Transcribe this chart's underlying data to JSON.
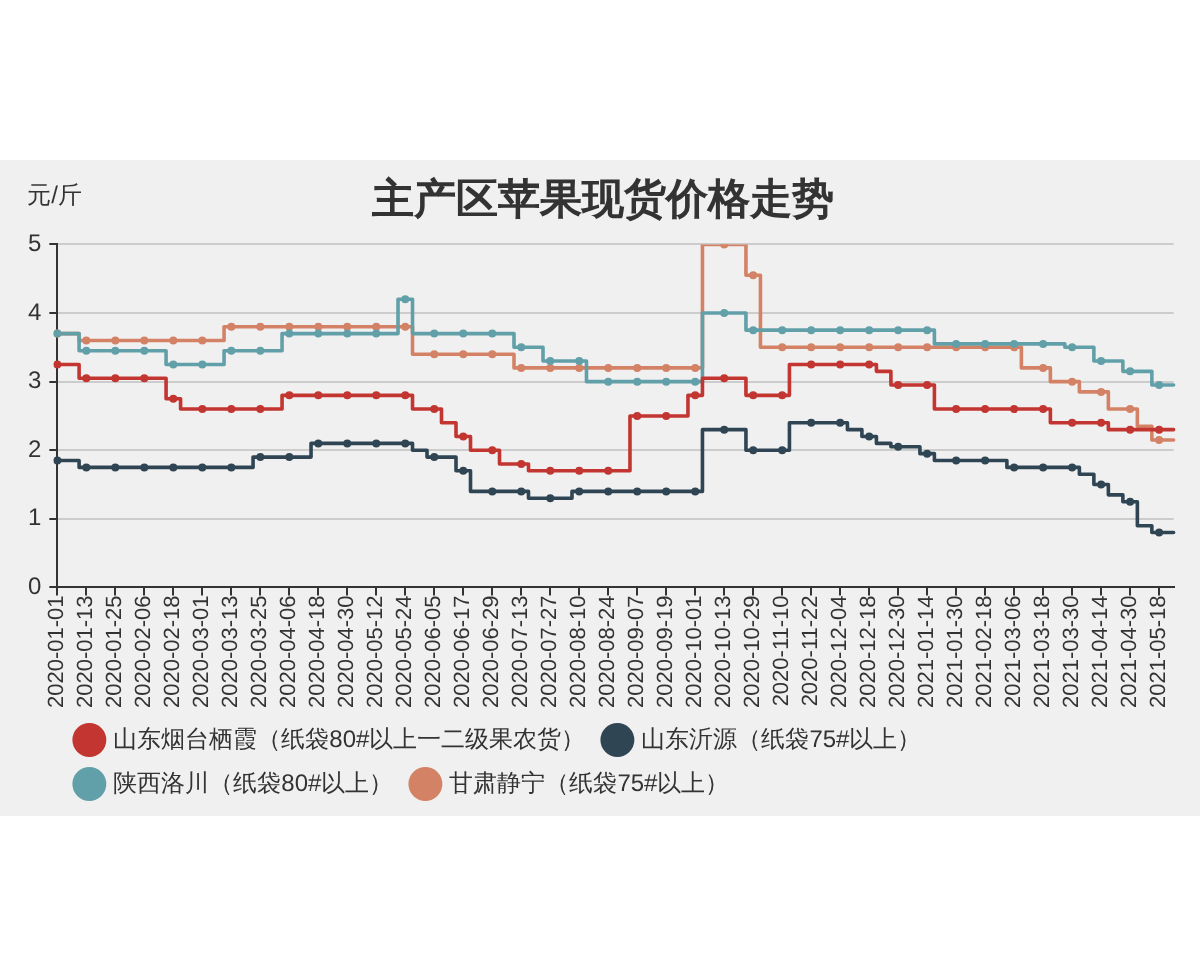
{
  "chart_data": {
    "type": "step",
    "title": "主产区苹果现货价格走势",
    "ylabel": "元/斤",
    "categories": [
      "2020-01-01",
      null,
      "2020-01-13",
      null,
      "2020-01-25",
      null,
      "2020-02-06",
      null,
      "2020-02-18",
      null,
      "2020-03-01",
      null,
      "2020-03-13",
      null,
      "2020-03-25",
      null,
      "2020-04-06",
      null,
      "2020-04-18",
      null,
      "2020-04-30",
      null,
      "2020-05-12",
      null,
      "2020-05-24",
      null,
      "2020-06-05",
      null,
      "2020-06-17",
      null,
      "2020-06-29",
      null,
      "2020-07-13",
      null,
      "2020-07-27",
      null,
      "2020-08-10",
      null,
      "2020-08-24",
      null,
      "2020-09-07",
      null,
      "2020-09-19",
      null,
      "2020-10-01",
      null,
      "2020-10-13",
      null,
      "2020-10-29",
      null,
      "2020-11-10",
      null,
      "2020-11-22",
      null,
      "2020-12-04",
      null,
      "2020-12-18",
      null,
      "2020-12-30",
      null,
      "2021-01-14",
      null,
      "2021-01-30",
      null,
      "2021-02-18",
      null,
      "2021-03-06",
      null,
      "2021-03-18",
      null,
      "2021-03-30",
      null,
      "2021-04-14",
      null,
      "2021-04-30",
      null,
      "2021-05-18",
      null
    ],
    "series": [
      {
        "name": "山东烟台栖霞（纸袋80#以上一二级果农货）",
        "color": "#c23531",
        "values": [
          3.25,
          3.25,
          3.05,
          3.05,
          3.05,
          3.05,
          3.05,
          3.05,
          2.75,
          2.6,
          2.6,
          2.6,
          2.6,
          2.6,
          2.6,
          2.6,
          2.8,
          2.8,
          2.8,
          2.8,
          2.8,
          2.8,
          2.8,
          2.8,
          2.8,
          2.6,
          2.6,
          2.4,
          2.2,
          2.0,
          2.0,
          1.8,
          1.8,
          1.7,
          1.7,
          1.7,
          1.7,
          1.7,
          1.7,
          1.7,
          2.5,
          2.5,
          2.5,
          2.5,
          2.8,
          3.05,
          3.05,
          3.05,
          2.8,
          2.8,
          2.8,
          3.25,
          3.25,
          3.25,
          3.25,
          3.25,
          3.25,
          3.15,
          2.95,
          2.95,
          2.95,
          2.6,
          2.6,
          2.6,
          2.6,
          2.6,
          2.6,
          2.6,
          2.6,
          2.4,
          2.4,
          2.4,
          2.4,
          2.3,
          2.3,
          2.3,
          2.3,
          2.3
        ]
      },
      {
        "name": "山东沂源（纸袋75#以上）",
        "color": "#2f4554",
        "values": [
          1.85,
          1.85,
          1.75,
          1.75,
          1.75,
          1.75,
          1.75,
          1.75,
          1.75,
          1.75,
          1.75,
          1.75,
          1.75,
          1.75,
          1.9,
          1.9,
          1.9,
          1.9,
          2.1,
          2.1,
          2.1,
          2.1,
          2.1,
          2.1,
          2.1,
          2.0,
          1.9,
          1.9,
          1.7,
          1.4,
          1.4,
          1.4,
          1.4,
          1.3,
          1.3,
          1.3,
          1.4,
          1.4,
          1.4,
          1.4,
          1.4,
          1.4,
          1.4,
          1.4,
          1.4,
          2.3,
          2.3,
          2.3,
          2.0,
          2.0,
          2.0,
          2.4,
          2.4,
          2.4,
          2.4,
          2.3,
          2.2,
          2.1,
          2.05,
          2.05,
          1.95,
          1.85,
          1.85,
          1.85,
          1.85,
          1.85,
          1.75,
          1.75,
          1.75,
          1.75,
          1.75,
          1.65,
          1.5,
          1.35,
          1.25,
          0.9,
          0.8,
          0.8
        ]
      },
      {
        "name": "陕西洛川（纸袋80#以上）",
        "color": "#61a0a8",
        "values": [
          3.7,
          3.7,
          3.45,
          3.45,
          3.45,
          3.45,
          3.45,
          3.45,
          3.25,
          3.25,
          3.25,
          3.25,
          3.45,
          3.45,
          3.45,
          3.45,
          3.7,
          3.7,
          3.7,
          3.7,
          3.7,
          3.7,
          3.7,
          3.7,
          4.2,
          3.7,
          3.7,
          3.7,
          3.7,
          3.7,
          3.7,
          3.7,
          3.5,
          3.5,
          3.3,
          3.3,
          3.3,
          3.0,
          3.0,
          3.0,
          3.0,
          3.0,
          3.0,
          3.0,
          3.0,
          4.0,
          4.0,
          4.0,
          3.75,
          3.75,
          3.75,
          3.75,
          3.75,
          3.75,
          3.75,
          3.75,
          3.75,
          3.75,
          3.75,
          3.75,
          3.75,
          3.55,
          3.55,
          3.55,
          3.55,
          3.55,
          3.55,
          3.55,
          3.55,
          3.55,
          3.5,
          3.5,
          3.3,
          3.3,
          3.15,
          3.15,
          2.95,
          2.95
        ]
      },
      {
        "name": "甘肃静宁（纸袋75#以上）",
        "color": "#d48265",
        "values": [
          3.7,
          3.7,
          3.6,
          3.6,
          3.6,
          3.6,
          3.6,
          3.6,
          3.6,
          3.6,
          3.6,
          3.6,
          3.8,
          3.8,
          3.8,
          3.8,
          3.8,
          3.8,
          3.8,
          3.8,
          3.8,
          3.8,
          3.8,
          3.8,
          3.8,
          3.4,
          3.4,
          3.4,
          3.4,
          3.4,
          3.4,
          3.4,
          3.2,
          3.2,
          3.2,
          3.2,
          3.2,
          3.2,
          3.2,
          3.2,
          3.2,
          3.2,
          3.2,
          3.2,
          3.2,
          5,
          5,
          5,
          4.55,
          3.5,
          3.5,
          3.5,
          3.5,
          3.5,
          3.5,
          3.5,
          3.5,
          3.5,
          3.5,
          3.5,
          3.5,
          3.5,
          3.5,
          3.5,
          3.5,
          3.5,
          3.5,
          3.2,
          3.2,
          3.0,
          3.0,
          2.85,
          2.85,
          2.6,
          2.6,
          2.35,
          2.15,
          2.15
        ]
      }
    ],
    "ylim": [
      0,
      5
    ],
    "yticks": [
      0,
      1,
      2,
      3,
      4,
      5
    ],
    "grid": "y",
    "legend": "bottom",
    "marker": "circle",
    "line_style": "solid"
  }
}
